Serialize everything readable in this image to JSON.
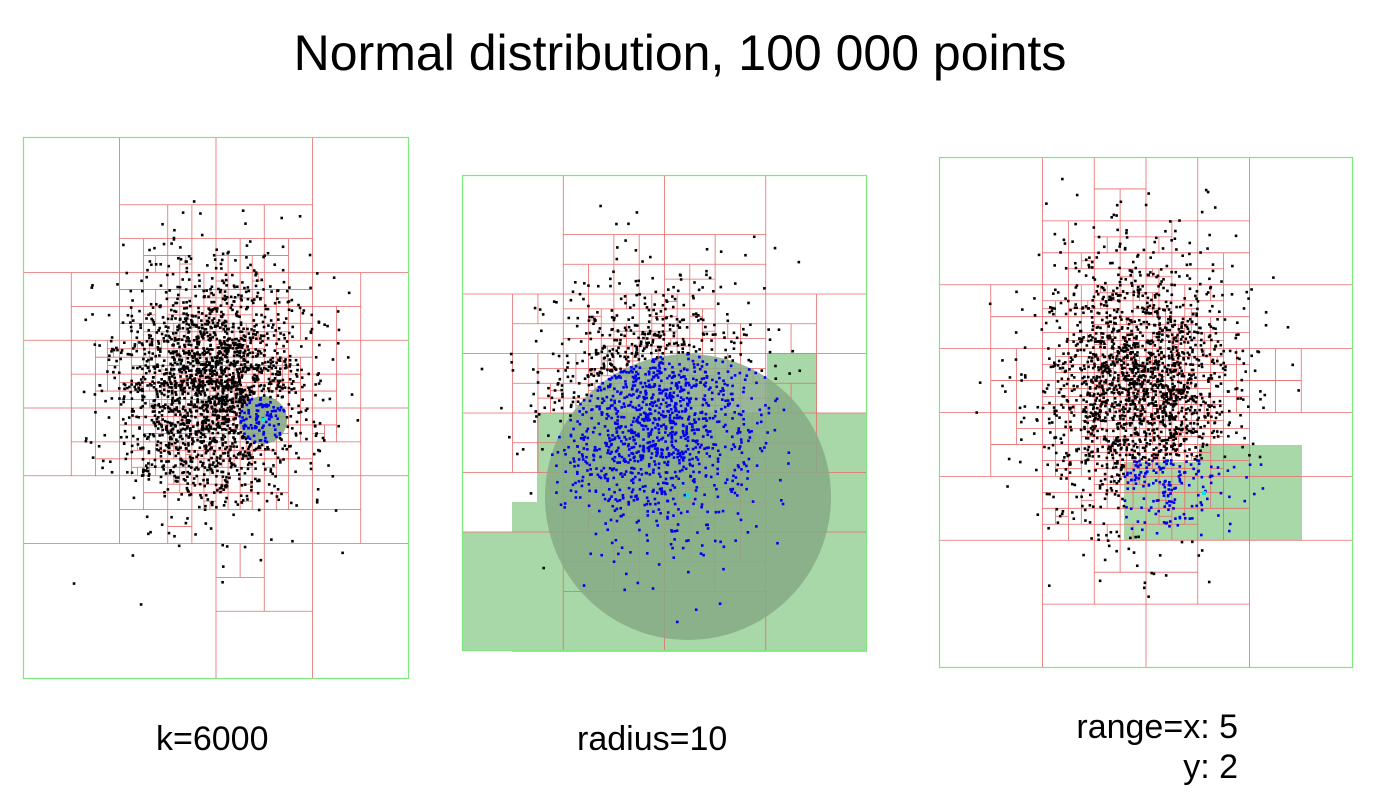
{
  "title": "Normal distribution, 100 000 points",
  "panels": [
    {
      "id": "knn",
      "caption": "k=6000"
    },
    {
      "id": "radius",
      "caption": "radius=10"
    },
    {
      "id": "range",
      "caption_line1": "range=x: 5",
      "caption_line2": "y: 2"
    }
  ],
  "colors": {
    "border": "#7ee87e",
    "cell": "#e86a6a",
    "point": "#000000",
    "result": "#0000ee",
    "query": "#00e5e5",
    "highlight": "#a8d8a8",
    "query_circle": "#86aa86"
  }
}
